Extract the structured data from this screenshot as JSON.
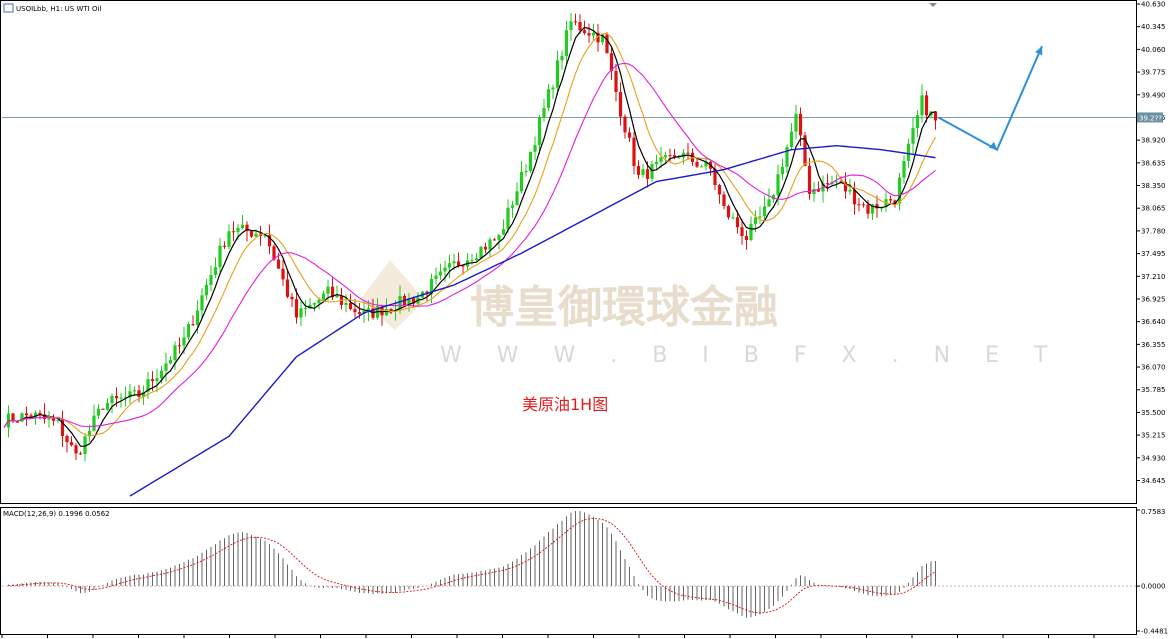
{
  "chart_data": {
    "type": "candlestick",
    "symbol_header": "USOILbb, H1:  US WTI Oil",
    "caption": "美原油1H图",
    "watermark": {
      "brand": "博皇御環球金融",
      "url": "W W W . B I B F X . N E T"
    },
    "price_axis": {
      "ylim": [
        34.4,
        40.63
      ],
      "ticks": [
        "40.630",
        "40.345",
        "40.060",
        "39.775",
        "39.490",
        "39.205",
        "38.920",
        "38.635",
        "38.350",
        "38.065",
        "37.780",
        "37.495",
        "37.210",
        "36.925",
        "36.640",
        "36.355",
        "36.070",
        "35.785",
        "35.500",
        "35.215",
        "34.930",
        "34.645"
      ],
      "current_price": 39.205,
      "current_price_label": "39.2??"
    },
    "macd": {
      "label": "MACD(12,26,9) 0.1996 0.0562",
      "ylim": [
        -0.4481,
        0.7583
      ],
      "ticks": [
        "0.7583",
        "0.0000",
        "-0.4481"
      ]
    },
    "anchors": [
      [
        0,
        35.4
      ],
      [
        6,
        35.47
      ],
      [
        12,
        35.35
      ],
      [
        16,
        34.95
      ],
      [
        22,
        35.6
      ],
      [
        30,
        35.72
      ],
      [
        40,
        36.4
      ],
      [
        50,
        37.8
      ],
      [
        58,
        37.75
      ],
      [
        65,
        36.7
      ],
      [
        72,
        37.0
      ],
      [
        80,
        36.72
      ],
      [
        92,
        36.95
      ],
      [
        100,
        37.35
      ],
      [
        110,
        37.7
      ],
      [
        116,
        38.6
      ],
      [
        120,
        39.3
      ],
      [
        126,
        40.4
      ],
      [
        133,
        40.2
      ],
      [
        137,
        39.3
      ],
      [
        141,
        38.45
      ],
      [
        150,
        38.75
      ],
      [
        157,
        38.55
      ],
      [
        160,
        38.05
      ],
      [
        165,
        37.7
      ],
      [
        170,
        38.1
      ],
      [
        176,
        39.2
      ],
      [
        179,
        38.3
      ],
      [
        185,
        38.4
      ],
      [
        192,
        38.05
      ],
      [
        198,
        38.2
      ],
      [
        204,
        39.4
      ],
      [
        207,
        39.15
      ]
    ],
    "series": [
      {
        "name": "",
        "color": "#000000",
        "offsets": [
          [
            0,
            0
          ],
          [
            207,
            0
          ]
        ]
      },
      {
        "name": "",
        "color": "#e7a11a",
        "offsets": [
          [
            0,
            -0.18
          ],
          [
            207,
            -0.3
          ]
        ]
      },
      {
        "name": "",
        "color": "#e11ee1",
        "offsets": [
          [
            0,
            -0.5
          ],
          [
            207,
            -0.6
          ]
        ]
      },
      {
        "name": "",
        "color": "#1a1acc",
        "offsets": [
          [
            0,
            -1.0
          ],
          [
            207,
            0
          ]
        ]
      }
    ],
    "blue_ma_path": [
      [
        28,
        34.45
      ],
      [
        50,
        35.2
      ],
      [
        65,
        36.2
      ],
      [
        80,
        36.75
      ],
      [
        100,
        37.1
      ],
      [
        115,
        37.5
      ],
      [
        130,
        37.95
      ],
      [
        145,
        38.4
      ],
      [
        160,
        38.55
      ],
      [
        175,
        38.8
      ],
      [
        185,
        38.85
      ],
      [
        195,
        38.8
      ],
      [
        207,
        38.7
      ]
    ],
    "forecast_path": [
      [
        207,
        39.205
      ],
      [
        220,
        38.8
      ],
      [
        230,
        40.1
      ]
    ],
    "colors": {
      "bull": "#22cc22",
      "bear": "#dd1111",
      "forecast": "#2b8fdd",
      "signal": "#dd1111"
    }
  }
}
